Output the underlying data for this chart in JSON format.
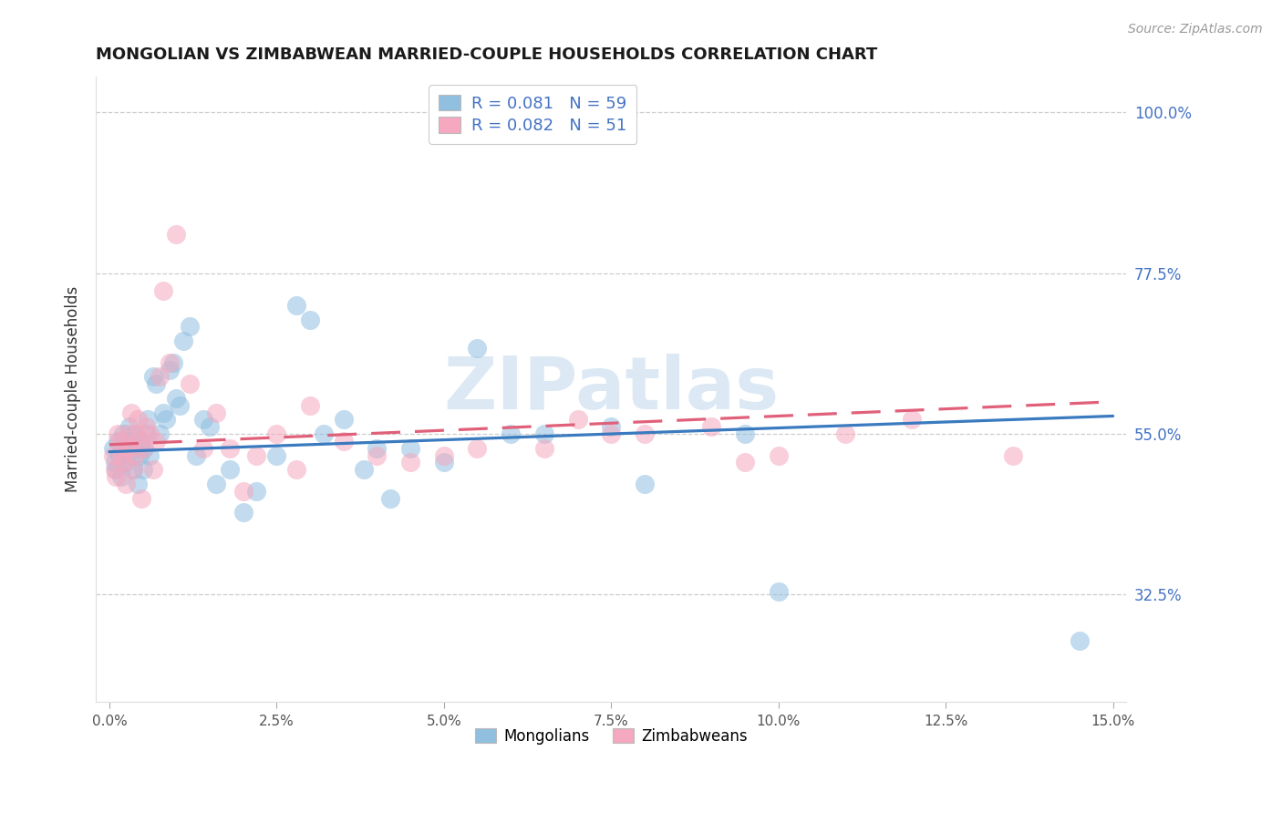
{
  "title": "MONGOLIAN VS ZIMBABWEAN MARRIED-COUPLE HOUSEHOLDS CORRELATION CHART",
  "source": "Source: ZipAtlas.com",
  "ylabel": "Married-couple Households",
  "xlim_min": -0.2,
  "xlim_max": 15.2,
  "ylim_min": 17.5,
  "ylim_max": 105.0,
  "yticks": [
    32.5,
    55.0,
    77.5,
    100.0
  ],
  "xticks": [
    0.0,
    2.5,
    5.0,
    7.5,
    10.0,
    12.5,
    15.0
  ],
  "mongolian_R": 0.081,
  "mongolian_N": 59,
  "zimbabwean_R": 0.082,
  "zimbabwean_N": 51,
  "blue_scatter_color": "#90bfe0",
  "pink_scatter_color": "#f5a8bf",
  "blue_line_color": "#3a7abf",
  "pink_line_color": "#e0607a",
  "watermark_color": "#dce9f5",
  "watermark_text": "ZIPatlas",
  "title_color": "#1a1a1a",
  "source_color": "#999999",
  "right_tick_color": "#4472c4",
  "grid_color": "#cccccc",
  "mongolian_x": [
    0.05,
    0.08,
    0.1,
    0.12,
    0.15,
    0.18,
    0.2,
    0.22,
    0.25,
    0.28,
    0.3,
    0.33,
    0.35,
    0.38,
    0.4,
    0.43,
    0.45,
    0.48,
    0.5,
    0.52,
    0.55,
    0.58,
    0.6,
    0.65,
    0.7,
    0.75,
    0.8,
    0.85,
    0.9,
    0.95,
    1.0,
    1.05,
    1.1,
    1.2,
    1.3,
    1.4,
    1.5,
    1.6,
    1.8,
    2.0,
    2.2,
    2.5,
    2.8,
    3.0,
    3.2,
    3.5,
    3.8,
    4.0,
    4.2,
    4.5,
    5.0,
    5.5,
    6.0,
    6.5,
    7.5,
    8.0,
    9.5,
    10.0,
    14.5
  ],
  "mongolian_y": [
    53,
    51,
    50,
    54,
    52,
    49,
    55,
    53,
    51,
    54,
    56,
    52,
    50,
    55,
    53,
    48,
    52,
    54,
    50,
    53,
    55,
    57,
    52,
    63,
    62,
    55,
    58,
    57,
    64,
    65,
    60,
    59,
    68,
    70,
    52,
    57,
    56,
    48,
    50,
    44,
    47,
    52,
    73,
    71,
    55,
    57,
    50,
    53,
    46,
    53,
    51,
    67,
    55,
    55,
    56,
    48,
    55,
    33,
    26
  ],
  "zimbabwean_x": [
    0.05,
    0.08,
    0.1,
    0.13,
    0.15,
    0.18,
    0.2,
    0.23,
    0.25,
    0.28,
    0.3,
    0.33,
    0.35,
    0.38,
    0.4,
    0.43,
    0.45,
    0.48,
    0.5,
    0.55,
    0.6,
    0.65,
    0.7,
    0.75,
    0.8,
    0.9,
    1.0,
    1.2,
    1.4,
    1.6,
    1.8,
    2.0,
    2.2,
    2.5,
    2.8,
    3.0,
    3.5,
    4.0,
    4.5,
    5.0,
    5.5,
    6.5,
    7.0,
    7.5,
    8.0,
    9.0,
    9.5,
    10.0,
    11.0,
    12.0,
    13.5
  ],
  "zimbabwean_y": [
    52,
    50,
    49,
    55,
    54,
    52,
    51,
    53,
    48,
    55,
    53,
    58,
    50,
    52,
    55,
    57,
    54,
    46,
    53,
    56,
    55,
    50,
    54,
    63,
    75,
    65,
    83,
    62,
    53,
    58,
    53,
    47,
    52,
    55,
    50,
    59,
    54,
    52,
    51,
    52,
    53,
    53,
    57,
    55,
    55,
    56,
    51,
    52,
    55,
    57,
    52
  ],
  "line_y0_blue": 52.5,
  "line_y15_blue": 57.5,
  "line_y0_pink": 53.5,
  "line_y15_pink": 59.5
}
